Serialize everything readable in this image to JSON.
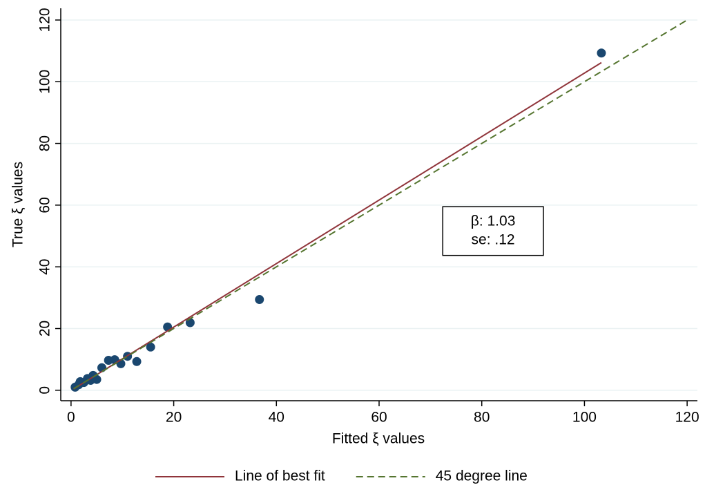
{
  "chart_data": {
    "type": "scatter",
    "x_label": "Fitted ξ values",
    "y_label": "True ξ values",
    "xlim": [
      -2,
      122
    ],
    "ylim": [
      -3.4,
      123.8
    ],
    "xticks": [
      0,
      20,
      40,
      60,
      80,
      100,
      120
    ],
    "yticks": [
      0,
      20,
      40,
      60,
      80,
      100,
      120
    ],
    "grid": true,
    "legend": "bottom",
    "series": [
      {
        "type": "scatter",
        "color": "#1a476f",
        "x": [
          0.8,
          1.5,
          1.8,
          2.5,
          3.2,
          3.8,
          4.3,
          5.0,
          6.0,
          7.3,
          8.5,
          9.7,
          11.0,
          12.8,
          15.5,
          18.8,
          23.2,
          36.7,
          103.3
        ],
        "values": [
          1.0,
          1.8,
          2.8,
          2.5,
          3.8,
          3.2,
          4.8,
          3.5,
          7.3,
          9.7,
          9.9,
          8.6,
          11.0,
          9.3,
          14.0,
          20.5,
          21.9,
          29.4,
          109.3
        ]
      },
      {
        "type": "line",
        "name": "Line of best fit",
        "color": "#90353b",
        "dash": false,
        "x": [
          0.5,
          103.3
        ],
        "values": [
          0.4,
          106.2
        ]
      },
      {
        "type": "line",
        "name": "45 degree line",
        "color": "#55752f",
        "dash": true,
        "x": [
          0.5,
          120
        ],
        "values": [
          0.5,
          120
        ]
      }
    ],
    "annotation": [
      "β: 1.03",
      "se: .12"
    ]
  }
}
